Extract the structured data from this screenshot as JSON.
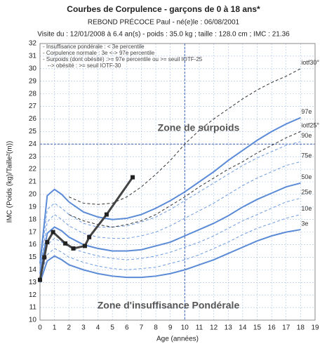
{
  "chart_data": {
    "type": "line",
    "title": "Courbes de Corpulence - garçons de 0 à  18 ans*",
    "subtitle": "REBOND PRÉCOCE Paul - né(e)le : 06/08/2001",
    "subtitle2": "Visite du : 12/01/2008 à  6.4 an(s) - poids : 35.0 kg ; taille : 128.0 cm ; IMC : 21.36",
    "x_label": "Age (années)",
    "y_label": "IMC (Poids (kg)/Taille²(m))",
    "notes": [
      "- Insuffisance pondérale : < 3e percentile",
      "- Corpulence normale : 3e <-> 97e percentile",
      "- Surpoids (dont obésité) :>= 97e percentile ou >= seuil IOTF-25",
      "   --> obésité : >= seuil IOTF-30"
    ],
    "annotations": [
      "Zone de surpoids",
      "Zone d'insuffisance Pondérale"
    ],
    "xlim": [
      0,
      19
    ],
    "xticks": [
      0,
      1,
      2,
      3,
      4,
      5,
      6,
      7,
      8,
      9,
      10,
      11,
      12,
      13,
      14,
      15,
      16,
      17,
      18,
      19
    ],
    "ylim": [
      10,
      32
    ],
    "yticks": [
      10,
      11,
      12,
      13,
      14,
      15,
      16,
      17,
      18,
      19,
      20,
      21,
      22,
      23,
      24,
      25,
      26,
      27,
      28,
      29,
      30,
      31,
      32
    ],
    "grid": true,
    "hlines": [
      24
    ],
    "vlines": [
      10
    ],
    "reference_color": "#3a5fb0",
    "series": [
      {
        "name": "3e",
        "color": "#5b8bd6",
        "width": 2,
        "dash": false,
        "x": [
          0,
          0.5,
          1,
          1.5,
          2,
          3,
          4,
          5,
          6,
          7,
          8,
          9,
          10,
          11,
          12,
          13,
          14,
          15,
          16,
          17,
          18
        ],
        "values": [
          13,
          14.7,
          15.1,
          14.8,
          14.4,
          14,
          13.7,
          13.5,
          13.4,
          13.4,
          13.5,
          13.7,
          14,
          14.4,
          14.8,
          15.3,
          15.8,
          16.3,
          16.7,
          17,
          17.2
        ]
      },
      {
        "name": "10e",
        "color": "#6f9ce0",
        "width": 1,
        "dash": true,
        "x": [
          0,
          0.5,
          1,
          1.5,
          2,
          3,
          4,
          5,
          6,
          7,
          8,
          9,
          10,
          11,
          12,
          13,
          14,
          15,
          16,
          17,
          18
        ],
        "values": [
          13.3,
          15.2,
          15.7,
          15.4,
          15,
          14.6,
          14.3,
          14.1,
          14,
          14.1,
          14.2,
          14.5,
          14.8,
          15.2,
          15.7,
          16.2,
          16.8,
          17.3,
          17.7,
          18.1,
          18.4
        ]
      },
      {
        "name": "25e",
        "color": "#6f9ce0",
        "width": 1,
        "dash": true,
        "x": [
          0,
          0.5,
          1,
          1.5,
          2,
          3,
          4,
          5,
          6,
          7,
          8,
          9,
          10,
          11,
          12,
          13,
          14,
          15,
          16,
          17,
          18
        ],
        "values": [
          13.5,
          16,
          16.5,
          16.2,
          15.8,
          15.4,
          15.1,
          14.9,
          14.8,
          14.9,
          15.1,
          15.4,
          15.8,
          16.2,
          16.7,
          17.3,
          17.9,
          18.4,
          18.9,
          19.4,
          19.7
        ]
      },
      {
        "name": "50e",
        "color": "#5b8bd6",
        "width": 2,
        "dash": false,
        "x": [
          0,
          0.5,
          1,
          1.5,
          2,
          3,
          4,
          5,
          6,
          7,
          8,
          9,
          10,
          11,
          12,
          13,
          14,
          15,
          16,
          17,
          18
        ],
        "values": [
          13.7,
          16.9,
          17.4,
          17.1,
          16.6,
          16,
          15.7,
          15.5,
          15.5,
          15.6,
          15.9,
          16.2,
          16.7,
          17.2,
          17.7,
          18.3,
          19,
          19.6,
          20.1,
          20.6,
          20.9
        ]
      },
      {
        "name": "75e",
        "color": "#6f9ce0",
        "width": 1,
        "dash": true,
        "x": [
          0,
          0.5,
          1,
          1.5,
          2,
          3,
          4,
          5,
          6,
          7,
          8,
          9,
          10,
          11,
          12,
          13,
          14,
          15,
          16,
          17,
          18
        ],
        "values": [
          14,
          17.8,
          18.4,
          18,
          17.5,
          16.9,
          16.6,
          16.5,
          16.5,
          16.7,
          17,
          17.5,
          18.1,
          18.7,
          19.3,
          20,
          20.7,
          21.3,
          21.8,
          22.3,
          22.6
        ]
      },
      {
        "name": "90e",
        "color": "#6f9ce0",
        "width": 1,
        "dash": true,
        "x": [
          0,
          0.5,
          1,
          1.5,
          2,
          3,
          4,
          5,
          6,
          7,
          8,
          9,
          10,
          11,
          12,
          13,
          14,
          15,
          16,
          17,
          18
        ],
        "values": [
          14.2,
          18.8,
          19.3,
          18.9,
          18.4,
          17.7,
          17.4,
          17.4,
          17.5,
          17.8,
          18.2,
          18.8,
          19.5,
          20.2,
          20.9,
          21.6,
          22.3,
          22.9,
          23.4,
          23.9,
          24.2
        ]
      },
      {
        "name": "97e",
        "color": "#5b8bd6",
        "width": 2,
        "dash": false,
        "x": [
          0,
          0.5,
          1,
          1.5,
          2,
          3,
          4,
          5,
          6,
          7,
          8,
          9,
          10,
          11,
          12,
          13,
          14,
          15,
          16,
          17,
          18
        ],
        "values": [
          14.5,
          19.9,
          20.4,
          20,
          19.4,
          18.6,
          18.2,
          18,
          18.1,
          18.4,
          18.9,
          19.5,
          20.2,
          21,
          21.8,
          22.7,
          23.5,
          24.3,
          25,
          25.6,
          26.1
        ]
      },
      {
        "name": "iotf25°",
        "color": "#333333",
        "width": 1,
        "dash": true,
        "x": [
          2,
          3,
          4,
          5,
          6,
          7,
          8,
          9,
          10,
          11,
          12,
          13,
          14,
          15,
          16,
          17,
          18
        ],
        "values": [
          18.4,
          17.9,
          17.6,
          17.4,
          17.6,
          17.9,
          18.4,
          19.1,
          19.8,
          20.6,
          21.3,
          22,
          22.6,
          23.3,
          23.9,
          24.5,
          25
        ]
      },
      {
        "name": "iotf30°",
        "color": "#333333",
        "width": 1,
        "dash": true,
        "x": [
          2,
          3,
          4,
          5,
          6,
          7,
          8,
          9,
          10,
          11,
          12,
          13,
          14,
          15,
          16,
          17,
          18
        ],
        "values": [
          19.8,
          19.3,
          19.2,
          19.3,
          19.8,
          20.6,
          21.6,
          22.7,
          24,
          25.1,
          26,
          26.8,
          27.6,
          28.3,
          28.9,
          29.4,
          30
        ]
      },
      {
        "color": "#444444",
        "width": 3,
        "dash": false,
        "markers": true,
        "x": [
          0,
          0.3,
          0.5,
          0.9,
          1.75,
          2.3,
          3.1,
          3.4,
          4.6,
          6.4
        ],
        "values": [
          13.2,
          15,
          16.2,
          17,
          16.1,
          15.7,
          15.9,
          16.6,
          18.4,
          21.36
        ]
      }
    ]
  }
}
